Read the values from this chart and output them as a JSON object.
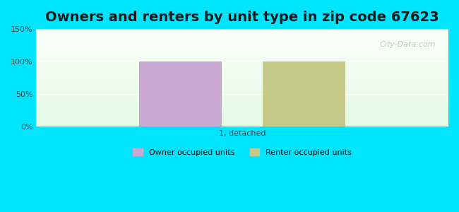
{
  "title": "Owners and renters by unit type in zip code 67623",
  "categories": [
    "1, detached"
  ],
  "owner_values": [
    100
  ],
  "renter_values": [
    100
  ],
  "owner_color": "#c9a8d4",
  "renter_color": "#c5c98a",
  "ylim": [
    0,
    150
  ],
  "yticks": [
    0,
    50,
    100,
    150
  ],
  "ytick_labels": [
    "0%",
    "50%",
    "100%",
    "150%"
  ],
  "background_color": "#00e5ff",
  "title_fontsize": 14,
  "legend_labels": [
    "Owner occupied units",
    "Renter occupied units"
  ],
  "watermark": "City-Data.com",
  "bar_width": 0.3,
  "bar_gap": 0.15
}
